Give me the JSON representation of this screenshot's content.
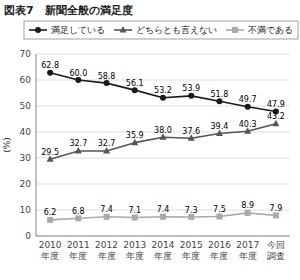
{
  "chart_data": {
    "type": "line",
    "title": "図表7　新聞全般の満足度",
    "categories": [
      "2010\n年度",
      "2011\n年度",
      "2012\n年度",
      "2013\n年度",
      "2014\n年度",
      "2015\n年度",
      "2016\n年度",
      "2017\n年度",
      "今回\n調査"
    ],
    "series": [
      {
        "name": "満足している",
        "color": "#1a1a1a",
        "marker": "circle",
        "line_style": "solid",
        "values": [
          62.8,
          60.0,
          58.8,
          56.1,
          53.2,
          53.9,
          51.8,
          49.7,
          47.9
        ],
        "value_labels": [
          "62.8",
          "60.0",
          "58.8",
          "56.1",
          "53.2",
          "53.9",
          "51.8",
          "49.7",
          "47.9"
        ]
      },
      {
        "name": "どちらとも言えない",
        "color": "#555555",
        "marker": "triangle",
        "line_style": "solid",
        "values": [
          29.5,
          32.7,
          32.7,
          35.9,
          38.0,
          37.6,
          39.4,
          40.3,
          43.2
        ],
        "value_labels": [
          "29.5",
          "32.7",
          "32.7",
          "35.9",
          "38.0",
          "37.6",
          "39.4",
          "40.3",
          "43.2"
        ]
      },
      {
        "name": "不満である",
        "color": "#aaaaaa",
        "marker": "square",
        "line_style": "solid",
        "values": [
          6.2,
          6.8,
          7.4,
          7.1,
          7.4,
          7.3,
          7.5,
          8.9,
          7.9
        ]
      }
    ],
    "y_label": "(%)",
    "ylim": [
      0,
      70
    ],
    "yticks": [
      0,
      10,
      20,
      30,
      40,
      50,
      60,
      70
    ],
    "grid": true,
    "legend": "top",
    "data_labels": true
  }
}
